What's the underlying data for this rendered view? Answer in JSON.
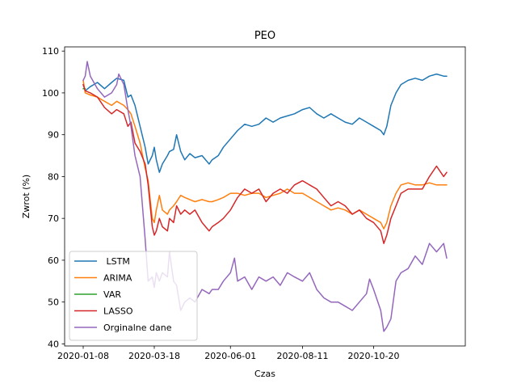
{
  "chart_data": {
    "type": "line",
    "title": "PEO",
    "xlabel": "Czas",
    "ylabel": "Zwrot (%)",
    "ylim": [
      39.5,
      111
    ],
    "yticks": [
      40,
      50,
      60,
      70,
      80,
      90,
      100,
      110
    ],
    "xticks": [
      "2020-01-08",
      "2020-03-18",
      "2020-06-01",
      "2020-08-11",
      "2020-10-20"
    ],
    "x_range": [
      "2020-01-08",
      "2020-12-31"
    ],
    "grid": false,
    "legend_position": "lower-left",
    "series": [
      {
        "name": " LSTM",
        "color": "#1f77b4",
        "points": [
          [
            "2020-01-08",
            102
          ],
          [
            "2020-01-10",
            100.5
          ],
          [
            "2020-01-15",
            101.5
          ],
          [
            "2020-01-22",
            102.5
          ],
          [
            "2020-01-29",
            101
          ],
          [
            "2020-02-05",
            102.5
          ],
          [
            "2020-02-10",
            103.5
          ],
          [
            "2020-02-17",
            103
          ],
          [
            "2020-02-21",
            99
          ],
          [
            "2020-02-24",
            99.5
          ],
          [
            "2020-02-28",
            97
          ],
          [
            "2020-03-04",
            92
          ],
          [
            "2020-03-09",
            87
          ],
          [
            "2020-03-12",
            83
          ],
          [
            "2020-03-16",
            85
          ],
          [
            "2020-03-18",
            87
          ],
          [
            "2020-03-20",
            84
          ],
          [
            "2020-03-23",
            81
          ],
          [
            "2020-03-26",
            83
          ],
          [
            "2020-03-31",
            85
          ],
          [
            "2020-04-02",
            86
          ],
          [
            "2020-04-06",
            86.5
          ],
          [
            "2020-04-09",
            90
          ],
          [
            "2020-04-13",
            86
          ],
          [
            "2020-04-17",
            84
          ],
          [
            "2020-04-22",
            85.5
          ],
          [
            "2020-04-27",
            84.5
          ],
          [
            "2020-05-04",
            85
          ],
          [
            "2020-05-11",
            83
          ],
          [
            "2020-05-14",
            84
          ],
          [
            "2020-05-20",
            85
          ],
          [
            "2020-05-25",
            87
          ],
          [
            "2020-06-01",
            89
          ],
          [
            "2020-06-08",
            91
          ],
          [
            "2020-06-15",
            92.5
          ],
          [
            "2020-06-22",
            92
          ],
          [
            "2020-06-29",
            92.5
          ],
          [
            "2020-07-06",
            94
          ],
          [
            "2020-07-13",
            93
          ],
          [
            "2020-07-20",
            94
          ],
          [
            "2020-07-27",
            94.5
          ],
          [
            "2020-08-03",
            95
          ],
          [
            "2020-08-11",
            96
          ],
          [
            "2020-08-18",
            96.5
          ],
          [
            "2020-08-25",
            95
          ],
          [
            "2020-09-01",
            94
          ],
          [
            "2020-09-08",
            95
          ],
          [
            "2020-09-15",
            94
          ],
          [
            "2020-09-22",
            93
          ],
          [
            "2020-09-29",
            92.5
          ],
          [
            "2020-10-06",
            94
          ],
          [
            "2020-10-13",
            93
          ],
          [
            "2020-10-20",
            92
          ],
          [
            "2020-10-27",
            91
          ],
          [
            "2020-10-30",
            90
          ],
          [
            "2020-11-02",
            92
          ],
          [
            "2020-11-06",
            97
          ],
          [
            "2020-11-11",
            100
          ],
          [
            "2020-11-16",
            102
          ],
          [
            "2020-11-23",
            103
          ],
          [
            "2020-11-30",
            103.5
          ],
          [
            "2020-12-07",
            103
          ],
          [
            "2020-12-14",
            104
          ],
          [
            "2020-12-21",
            104.5
          ],
          [
            "2020-12-28",
            104
          ],
          [
            "2020-12-31",
            104
          ]
        ]
      },
      {
        "name": "ARIMA",
        "color": "#ff7f0e",
        "points": [
          [
            "2020-01-08",
            103
          ],
          [
            "2020-01-10",
            100
          ],
          [
            "2020-01-15",
            99.5
          ],
          [
            "2020-01-22",
            99
          ],
          [
            "2020-01-29",
            98
          ],
          [
            "2020-02-05",
            97
          ],
          [
            "2020-02-10",
            98
          ],
          [
            "2020-02-17",
            97
          ],
          [
            "2020-02-21",
            96
          ],
          [
            "2020-02-24",
            95
          ],
          [
            "2020-02-28",
            92
          ],
          [
            "2020-03-04",
            88
          ],
          [
            "2020-03-09",
            82
          ],
          [
            "2020-03-12",
            79
          ],
          [
            "2020-03-16",
            70
          ],
          [
            "2020-03-18",
            69
          ],
          [
            "2020-03-20",
            72
          ],
          [
            "2020-03-23",
            75.5
          ],
          [
            "2020-03-26",
            72
          ],
          [
            "2020-03-31",
            71
          ],
          [
            "2020-04-02",
            72
          ],
          [
            "2020-04-06",
            73
          ],
          [
            "2020-04-09",
            74
          ],
          [
            "2020-04-13",
            75.5
          ],
          [
            "2020-04-17",
            75
          ],
          [
            "2020-04-22",
            74.5
          ],
          [
            "2020-04-27",
            74
          ],
          [
            "2020-05-04",
            74.5
          ],
          [
            "2020-05-11",
            74
          ],
          [
            "2020-05-14",
            74
          ],
          [
            "2020-05-20",
            74.5
          ],
          [
            "2020-05-25",
            75
          ],
          [
            "2020-06-01",
            76
          ],
          [
            "2020-06-08",
            76
          ],
          [
            "2020-06-15",
            75.5
          ],
          [
            "2020-06-22",
            76
          ],
          [
            "2020-06-29",
            76
          ],
          [
            "2020-07-06",
            75
          ],
          [
            "2020-07-13",
            75.5
          ],
          [
            "2020-07-20",
            76
          ],
          [
            "2020-07-27",
            77
          ],
          [
            "2020-08-03",
            76
          ],
          [
            "2020-08-11",
            76
          ],
          [
            "2020-08-18",
            75
          ],
          [
            "2020-08-25",
            74
          ],
          [
            "2020-09-01",
            73
          ],
          [
            "2020-09-08",
            72
          ],
          [
            "2020-09-15",
            72.5
          ],
          [
            "2020-09-22",
            72
          ],
          [
            "2020-09-29",
            71
          ],
          [
            "2020-10-06",
            72
          ],
          [
            "2020-10-13",
            71
          ],
          [
            "2020-10-20",
            70
          ],
          [
            "2020-10-27",
            69
          ],
          [
            "2020-10-30",
            67.5
          ],
          [
            "2020-11-02",
            69
          ],
          [
            "2020-11-06",
            73
          ],
          [
            "2020-11-11",
            76
          ],
          [
            "2020-11-16",
            78
          ],
          [
            "2020-11-23",
            78.5
          ],
          [
            "2020-11-30",
            78
          ],
          [
            "2020-12-07",
            78
          ],
          [
            "2020-12-14",
            78.5
          ],
          [
            "2020-12-21",
            78
          ],
          [
            "2020-12-28",
            78
          ],
          [
            "2020-12-31",
            78
          ]
        ]
      },
      {
        "name": "VAR",
        "color": "#2ca02c",
        "points": [
          [
            "2020-01-08",
            101
          ],
          [
            "2020-01-10",
            101
          ]
        ]
      },
      {
        "name": "LASSO",
        "color": "#d62728",
        "points": [
          [
            "2020-01-08",
            102
          ],
          [
            "2020-01-10",
            100.5
          ],
          [
            "2020-01-15",
            100
          ],
          [
            "2020-01-22",
            99
          ],
          [
            "2020-01-29",
            96.5
          ],
          [
            "2020-02-05",
            95
          ],
          [
            "2020-02-10",
            96
          ],
          [
            "2020-02-17",
            95
          ],
          [
            "2020-02-21",
            92
          ],
          [
            "2020-02-24",
            93
          ],
          [
            "2020-02-28",
            88
          ],
          [
            "2020-03-04",
            86
          ],
          [
            "2020-03-09",
            83
          ],
          [
            "2020-03-12",
            78
          ],
          [
            "2020-03-16",
            68
          ],
          [
            "2020-03-18",
            66
          ],
          [
            "2020-03-20",
            67
          ],
          [
            "2020-03-23",
            70
          ],
          [
            "2020-03-26",
            68
          ],
          [
            "2020-03-31",
            67
          ],
          [
            "2020-04-02",
            70
          ],
          [
            "2020-04-06",
            69
          ],
          [
            "2020-04-09",
            73
          ],
          [
            "2020-04-13",
            71
          ],
          [
            "2020-04-17",
            72
          ],
          [
            "2020-04-22",
            71
          ],
          [
            "2020-04-27",
            72
          ],
          [
            "2020-05-04",
            69
          ],
          [
            "2020-05-11",
            67
          ],
          [
            "2020-05-14",
            68
          ],
          [
            "2020-05-20",
            69
          ],
          [
            "2020-05-25",
            70
          ],
          [
            "2020-06-01",
            72
          ],
          [
            "2020-06-08",
            75
          ],
          [
            "2020-06-15",
            77
          ],
          [
            "2020-06-22",
            76
          ],
          [
            "2020-06-29",
            77
          ],
          [
            "2020-07-06",
            74
          ],
          [
            "2020-07-13",
            76
          ],
          [
            "2020-07-20",
            77
          ],
          [
            "2020-07-27",
            76
          ],
          [
            "2020-08-03",
            78
          ],
          [
            "2020-08-11",
            79
          ],
          [
            "2020-08-18",
            78
          ],
          [
            "2020-08-25",
            77
          ],
          [
            "2020-09-01",
            75
          ],
          [
            "2020-09-08",
            73
          ],
          [
            "2020-09-15",
            74
          ],
          [
            "2020-09-22",
            73
          ],
          [
            "2020-09-29",
            71
          ],
          [
            "2020-10-06",
            72
          ],
          [
            "2020-10-13",
            70
          ],
          [
            "2020-10-20",
            69
          ],
          [
            "2020-10-27",
            67
          ],
          [
            "2020-10-30",
            64
          ],
          [
            "2020-11-02",
            66
          ],
          [
            "2020-11-06",
            70
          ],
          [
            "2020-11-11",
            73
          ],
          [
            "2020-11-16",
            76
          ],
          [
            "2020-11-23",
            77
          ],
          [
            "2020-11-30",
            77
          ],
          [
            "2020-12-07",
            77
          ],
          [
            "2020-12-14",
            80
          ],
          [
            "2020-12-21",
            82.5
          ],
          [
            "2020-12-28",
            80
          ],
          [
            "2020-12-31",
            81
          ]
        ]
      },
      {
        "name": "Orginalne dane",
        "color": "#9467bd",
        "points": [
          [
            "2020-01-08",
            103
          ],
          [
            "2020-01-10",
            104
          ],
          [
            "2020-01-12",
            107.5
          ],
          [
            "2020-01-15",
            104
          ],
          [
            "2020-01-22",
            101
          ],
          [
            "2020-01-29",
            99
          ],
          [
            "2020-02-05",
            100
          ],
          [
            "2020-02-10",
            102
          ],
          [
            "2020-02-12",
            104.5
          ],
          [
            "2020-02-17",
            102
          ],
          [
            "2020-02-21",
            96
          ],
          [
            "2020-02-24",
            92
          ],
          [
            "2020-02-28",
            85
          ],
          [
            "2020-03-04",
            80
          ],
          [
            "2020-03-09",
            65
          ],
          [
            "2020-03-12",
            55
          ],
          [
            "2020-03-16",
            56
          ],
          [
            "2020-03-18",
            53.5
          ],
          [
            "2020-03-20",
            57
          ],
          [
            "2020-03-23",
            55
          ],
          [
            "2020-03-26",
            57
          ],
          [
            "2020-03-31",
            56
          ],
          [
            "2020-04-02",
            62
          ],
          [
            "2020-04-06",
            55
          ],
          [
            "2020-04-09",
            54
          ],
          [
            "2020-04-13",
            48
          ],
          [
            "2020-04-17",
            50
          ],
          [
            "2020-04-22",
            51
          ],
          [
            "2020-04-27",
            50
          ],
          [
            "2020-05-04",
            53
          ],
          [
            "2020-05-11",
            52
          ],
          [
            "2020-05-14",
            53
          ],
          [
            "2020-05-20",
            53
          ],
          [
            "2020-05-25",
            55
          ],
          [
            "2020-06-01",
            57
          ],
          [
            "2020-06-05",
            60.5
          ],
          [
            "2020-06-08",
            55
          ],
          [
            "2020-06-15",
            56
          ],
          [
            "2020-06-22",
            53
          ],
          [
            "2020-06-29",
            56
          ],
          [
            "2020-07-06",
            55
          ],
          [
            "2020-07-13",
            56
          ],
          [
            "2020-07-20",
            54
          ],
          [
            "2020-07-27",
            57
          ],
          [
            "2020-08-03",
            56
          ],
          [
            "2020-08-11",
            55
          ],
          [
            "2020-08-18",
            57
          ],
          [
            "2020-08-25",
            53
          ],
          [
            "2020-09-01",
            51
          ],
          [
            "2020-09-08",
            50
          ],
          [
            "2020-09-15",
            50
          ],
          [
            "2020-09-22",
            49
          ],
          [
            "2020-09-29",
            48
          ],
          [
            "2020-10-06",
            50
          ],
          [
            "2020-10-13",
            52
          ],
          [
            "2020-10-16",
            55.5
          ],
          [
            "2020-10-20",
            53
          ],
          [
            "2020-10-27",
            48
          ],
          [
            "2020-10-30",
            43
          ],
          [
            "2020-11-02",
            44
          ],
          [
            "2020-11-06",
            46
          ],
          [
            "2020-11-11",
            55
          ],
          [
            "2020-11-16",
            57
          ],
          [
            "2020-11-23",
            58
          ],
          [
            "2020-11-30",
            61
          ],
          [
            "2020-12-07",
            59
          ],
          [
            "2020-12-14",
            64
          ],
          [
            "2020-12-21",
            62
          ],
          [
            "2020-12-28",
            64
          ],
          [
            "2020-12-31",
            60.5
          ]
        ]
      }
    ]
  }
}
